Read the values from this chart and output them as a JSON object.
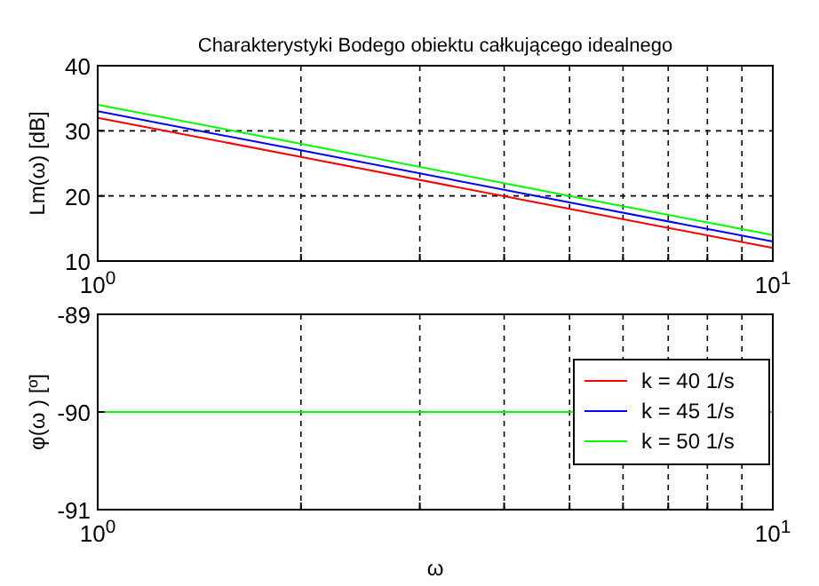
{
  "chart_data": [
    {
      "type": "line",
      "title": "Charakterystyki Bodego obiektu całkującego idealnego",
      "ylabel": "Lm(ω) [dB]",
      "log": "x",
      "grid": true,
      "legend": false,
      "line_style": "solid",
      "xlim": [
        1,
        10
      ],
      "xticks": [
        {
          "value": 1,
          "label": "10$^{0}$"
        },
        {
          "value": 2,
          "label": null
        },
        {
          "value": 3,
          "label": null
        },
        {
          "value": 4,
          "label": null
        },
        {
          "value": 5,
          "label": null
        },
        {
          "value": 6,
          "label": null
        },
        {
          "value": 7,
          "label": null
        },
        {
          "value": 8,
          "label": null
        },
        {
          "value": 9,
          "label": null
        },
        {
          "value": 10,
          "label": "10$^{1}$"
        }
      ],
      "ylim": [
        10,
        40
      ],
      "yticks": [
        10,
        20,
        30,
        40
      ],
      "series": [
        {
          "color": "#ff0000",
          "x": [
            1,
            2,
            5,
            10
          ],
          "values": [
            32,
            26,
            18,
            12
          ]
        },
        {
          "color": "#0000ff",
          "x": [
            1,
            2,
            5,
            10
          ],
          "values": [
            33,
            27,
            19,
            13
          ]
        },
        {
          "color": "#00ff00",
          "x": [
            1,
            2,
            5,
            10
          ],
          "values": [
            34,
            28,
            20,
            14
          ]
        }
      ]
    },
    {
      "type": "line",
      "xlabel": "ω",
      "ylabel": "φ(ω ) [º]",
      "log": "x",
      "grid": true,
      "legend": "right",
      "line_style": "solid",
      "xlim": [
        1,
        10
      ],
      "xticks": [
        {
          "value": 1,
          "label": "10$^{0}$"
        },
        {
          "value": 2,
          "label": null
        },
        {
          "value": 3,
          "label": null
        },
        {
          "value": 4,
          "label": null
        },
        {
          "value": 5,
          "label": null
        },
        {
          "value": 6,
          "label": null
        },
        {
          "value": 7,
          "label": null
        },
        {
          "value": 8,
          "label": null
        },
        {
          "value": 9,
          "label": null
        },
        {
          "value": 10,
          "label": "10$^{1}$"
        }
      ],
      "ylim": [
        -91,
        -89
      ],
      "yticks": [
        -91,
        -90,
        -89
      ],
      "series": [
        {
          "name": "k = 40 1/s",
          "color": "#ff0000"
        },
        {
          "name": "k = 45 1/s",
          "color": "#0000ff"
        },
        {
          "name": "k = 50 1/s",
          "color": "#00ff00",
          "x": [
            1,
            2,
            5,
            10
          ],
          "values": [
            -90,
            -90,
            -90,
            -90
          ]
        }
      ]
    }
  ]
}
